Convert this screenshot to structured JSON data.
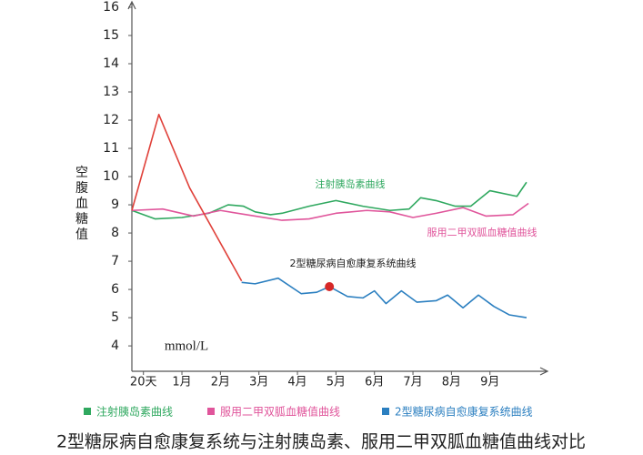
{
  "chart_data": {
    "type": "line",
    "title": "2型糖尿病自愈康复系统与注射胰岛素、服用二甲双胍血糖值曲线对比",
    "y_label": "空腹血糖值",
    "unit": "mmol/L",
    "categories": [
      "20天",
      "1月",
      "2月",
      "3月",
      "4月",
      "5月",
      "6月",
      "7月",
      "8月",
      "9月"
    ],
    "xlim": [
      -0.3,
      10.4
    ],
    "ylim": [
      3.1,
      16
    ],
    "yticks": [
      4,
      5,
      6,
      7,
      8,
      9,
      10,
      11,
      12,
      13,
      14,
      15,
      16
    ],
    "series": [
      {
        "name": "注射胰岛素曲线",
        "color": "#2fa85f",
        "x": [
          -0.3,
          0.3,
          1,
          1.7,
          2.2,
          2.6,
          2.9,
          3.3,
          3.6,
          4.3,
          5,
          5.7,
          6.4,
          6.9,
          7.2,
          7.6,
          8.1,
          8.5,
          9,
          9.7,
          9.95
        ],
        "values": [
          8.8,
          8.5,
          8.55,
          8.7,
          9.0,
          8.95,
          8.75,
          8.65,
          8.7,
          8.95,
          9.15,
          8.95,
          8.8,
          8.85,
          9.25,
          9.15,
          8.95,
          8.95,
          9.5,
          9.3,
          9.8
        ]
      },
      {
        "name": "服用二甲双胍血糖值曲线",
        "color": "#e0559b",
        "x": [
          -0.3,
          0.5,
          1.3,
          2,
          2.9,
          3.6,
          4.3,
          5,
          5.8,
          6.4,
          7,
          7.6,
          8.3,
          8.9,
          9.6,
          10
        ],
        "values": [
          8.8,
          8.85,
          8.6,
          8.8,
          8.6,
          8.45,
          8.5,
          8.7,
          8.8,
          8.75,
          8.55,
          8.7,
          8.9,
          8.6,
          8.65,
          9.05
        ]
      },
      {
        "name": "2型糖尿病自愈康复系统曲线",
        "color": "#2b7fc0",
        "x": [
          2.55,
          2.9,
          3.5,
          4.1,
          4.5,
          4.83,
          5.3,
          5.7,
          6.0,
          6.3,
          6.7,
          7.1,
          7.6,
          7.9,
          8.3,
          8.7,
          9.1,
          9.5,
          9.95
        ],
        "values": [
          6.25,
          6.2,
          6.4,
          5.85,
          5.9,
          6.1,
          5.75,
          5.7,
          5.95,
          5.5,
          5.95,
          5.55,
          5.6,
          5.8,
          5.35,
          5.8,
          5.4,
          5.1,
          5.0
        ]
      },
      {
        "color": "#e0413a",
        "x": [
          -0.3,
          0.4,
          1.2,
          2.55
        ],
        "values": [
          8.8,
          12.2,
          9.6,
          6.3
        ]
      }
    ],
    "point": {
      "x": 4.83,
      "y": 6.1,
      "color": "#d62828"
    },
    "annotations": [
      "注射胰岛素曲线",
      "服用二甲双胍血糖值曲线",
      "2型糖尿病自愈康复系统曲线"
    ]
  }
}
